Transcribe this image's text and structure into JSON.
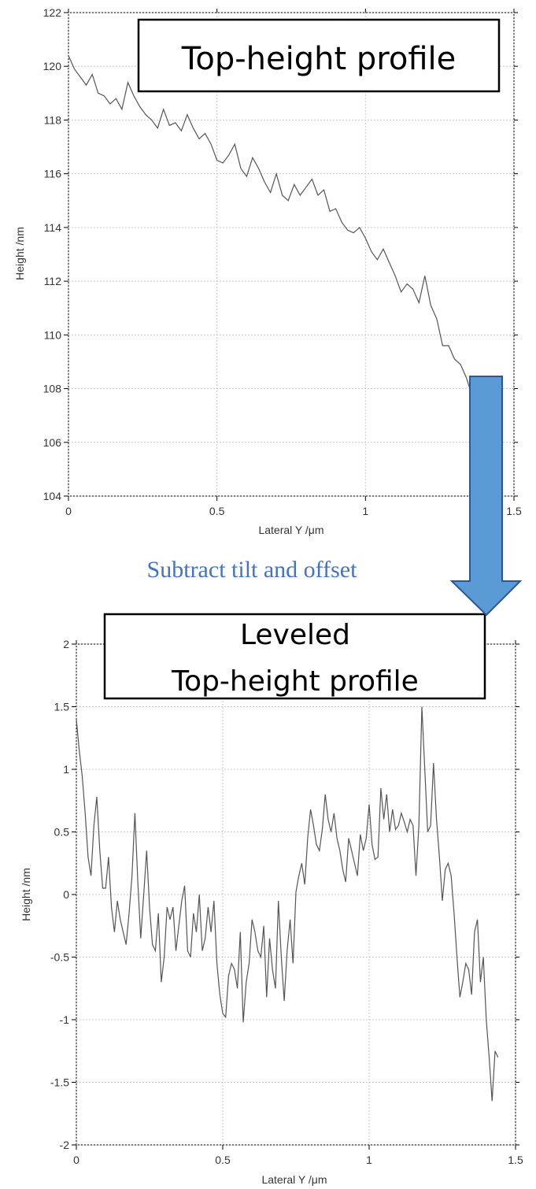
{
  "colors": {
    "arrow_fill": "#5b9bd5",
    "arrow_stroke": "#2f5597",
    "note_text": "#4472c4",
    "line": "#555555",
    "grid": "#c8c8c8"
  },
  "annotation": {
    "text": "Subtract tilt and offset"
  },
  "chart_data": [
    {
      "type": "line",
      "title_box": [
        "Top-height profile"
      ],
      "xlabel": "Lateral Y /μm",
      "ylabel": "Height /nm",
      "xlim": [
        0,
        1.5
      ],
      "ylim": [
        104,
        122
      ],
      "xticks": [
        0,
        0.5,
        1,
        1.5
      ],
      "xtick_labels": [
        "0",
        "0.5",
        "1",
        "1.5"
      ],
      "yticks": [
        104,
        106,
        108,
        110,
        112,
        114,
        116,
        118,
        120,
        122
      ],
      "ytick_labels": [
        "104",
        "106",
        "108",
        "110",
        "112",
        "114",
        "116",
        "118",
        "120",
        "122"
      ],
      "grid": true,
      "series": [
        {
          "x": [
            0.0,
            0.02,
            0.04,
            0.06,
            0.08,
            0.1,
            0.12,
            0.14,
            0.16,
            0.18,
            0.2,
            0.22,
            0.24,
            0.26,
            0.28,
            0.3,
            0.32,
            0.34,
            0.36,
            0.38,
            0.4,
            0.42,
            0.44,
            0.46,
            0.48,
            0.5,
            0.52,
            0.54,
            0.56,
            0.58,
            0.6,
            0.62,
            0.64,
            0.66,
            0.68,
            0.7,
            0.72,
            0.74,
            0.76,
            0.78,
            0.8,
            0.82,
            0.84,
            0.86,
            0.88,
            0.9,
            0.92,
            0.94,
            0.96,
            0.98,
            1.0,
            1.02,
            1.04,
            1.06,
            1.08,
            1.1,
            1.12,
            1.14,
            1.16,
            1.18,
            1.2,
            1.22,
            1.24,
            1.26,
            1.28,
            1.3,
            1.32,
            1.34,
            1.36,
            1.38
          ],
          "y": [
            120.4,
            119.9,
            119.6,
            119.3,
            119.7,
            119.0,
            118.9,
            118.6,
            118.8,
            118.4,
            119.4,
            118.9,
            118.5,
            118.2,
            118.0,
            117.7,
            118.4,
            117.8,
            117.9,
            117.6,
            118.2,
            117.7,
            117.3,
            117.5,
            117.1,
            116.5,
            116.4,
            116.7,
            117.1,
            116.2,
            115.9,
            116.6,
            116.2,
            115.7,
            115.3,
            116.0,
            115.2,
            115.0,
            115.6,
            115.2,
            115.5,
            115.8,
            115.2,
            115.4,
            114.6,
            114.7,
            114.2,
            113.9,
            113.8,
            114.0,
            113.6,
            113.1,
            112.8,
            113.2,
            112.7,
            112.2,
            111.6,
            111.9,
            111.7,
            111.2,
            112.2,
            111.1,
            110.6,
            109.6,
            109.6,
            109.1,
            108.9,
            108.4,
            107.7,
            107.3
          ]
        }
      ]
    },
    {
      "type": "line",
      "title_box": [
        "Leveled",
        "Top-height profile"
      ],
      "xlabel": "Lateral Y /μm",
      "ylabel": "Height /nm",
      "xlim": [
        0,
        1.5
      ],
      "ylim": [
        -2,
        2
      ],
      "xticks": [
        0,
        0.5,
        1,
        1.5
      ],
      "xtick_labels": [
        "0",
        "0.5",
        "1",
        "1.5"
      ],
      "yticks": [
        -2,
        -1.5,
        -1,
        -0.5,
        0,
        0.5,
        1,
        1.5,
        2
      ],
      "ytick_labels": [
        "-2",
        "-1.5",
        "-1",
        "-0.5",
        "0",
        "0.5",
        "1",
        "1.5",
        "2"
      ],
      "grid": true,
      "series": [
        {
          "x": [
            0.0,
            0.01,
            0.02,
            0.03,
            0.04,
            0.05,
            0.06,
            0.07,
            0.08,
            0.09,
            0.1,
            0.11,
            0.12,
            0.13,
            0.14,
            0.15,
            0.16,
            0.17,
            0.18,
            0.19,
            0.2,
            0.21,
            0.22,
            0.23,
            0.24,
            0.25,
            0.26,
            0.27,
            0.28,
            0.29,
            0.3,
            0.31,
            0.32,
            0.33,
            0.34,
            0.35,
            0.36,
            0.37,
            0.38,
            0.39,
            0.4,
            0.41,
            0.42,
            0.43,
            0.44,
            0.45,
            0.46,
            0.47,
            0.48,
            0.49,
            0.5,
            0.51,
            0.52,
            0.53,
            0.54,
            0.55,
            0.56,
            0.57,
            0.58,
            0.59,
            0.6,
            0.61,
            0.62,
            0.63,
            0.64,
            0.65,
            0.66,
            0.67,
            0.68,
            0.69,
            0.7,
            0.71,
            0.72,
            0.73,
            0.74,
            0.75,
            0.76,
            0.77,
            0.78,
            0.79,
            0.8,
            0.81,
            0.82,
            0.83,
            0.84,
            0.85,
            0.86,
            0.87,
            0.88,
            0.89,
            0.9,
            0.91,
            0.92,
            0.93,
            0.94,
            0.95,
            0.96,
            0.97,
            0.98,
            0.99,
            1.0,
            1.01,
            1.02,
            1.03,
            1.04,
            1.05,
            1.06,
            1.07,
            1.08,
            1.09,
            1.1,
            1.11,
            1.12,
            1.13,
            1.14,
            1.15,
            1.16,
            1.17,
            1.18,
            1.19,
            1.2,
            1.21,
            1.22,
            1.23,
            1.24,
            1.25,
            1.26,
            1.27,
            1.28,
            1.29,
            1.3,
            1.31,
            1.32,
            1.33,
            1.34,
            1.35,
            1.36,
            1.37,
            1.38,
            1.39,
            1.4,
            1.41,
            1.42,
            1.43,
            1.44
          ],
          "y": [
            1.4,
            1.15,
            0.95,
            0.65,
            0.3,
            0.15,
            0.55,
            0.78,
            0.35,
            0.05,
            0.05,
            0.3,
            -0.1,
            -0.3,
            -0.05,
            -0.2,
            -0.3,
            -0.4,
            -0.15,
            0.15,
            0.65,
            0.1,
            -0.35,
            0.0,
            0.35,
            -0.1,
            -0.4,
            -0.45,
            -0.15,
            -0.7,
            -0.5,
            -0.1,
            -0.2,
            -0.1,
            -0.45,
            -0.25,
            -0.05,
            0.07,
            -0.45,
            -0.5,
            -0.15,
            -0.3,
            0.0,
            -0.45,
            -0.35,
            -0.1,
            -0.3,
            -0.05,
            -0.55,
            -0.8,
            -0.95,
            -0.98,
            -0.65,
            -0.55,
            -0.6,
            -0.75,
            -0.3,
            -1.02,
            -0.7,
            -0.55,
            -0.2,
            -0.3,
            -0.45,
            -0.5,
            -0.25,
            -0.82,
            -0.35,
            -0.6,
            -0.75,
            -0.05,
            -0.5,
            -0.85,
            -0.45,
            -0.2,
            -0.55,
            0.02,
            0.15,
            0.25,
            0.08,
            0.45,
            0.68,
            0.55,
            0.4,
            0.35,
            0.52,
            0.8,
            0.6,
            0.5,
            0.65,
            0.45,
            0.35,
            0.2,
            0.1,
            0.45,
            0.35,
            0.25,
            0.15,
            0.48,
            0.35,
            0.45,
            0.72,
            0.4,
            0.28,
            0.3,
            0.85,
            0.6,
            0.8,
            0.5,
            0.68,
            0.52,
            0.55,
            0.65,
            0.58,
            0.5,
            0.6,
            0.55,
            0.15,
            0.55,
            1.5,
            1.0,
            0.5,
            0.55,
            1.05,
            0.6,
            0.3,
            -0.05,
            0.2,
            0.25,
            0.15,
            -0.15,
            -0.5,
            -0.82,
            -0.7,
            -0.55,
            -0.6,
            -0.8,
            -0.3,
            -0.2,
            -0.7,
            -0.5,
            -1.0,
            -1.3,
            -1.65,
            -1.25,
            -1.3
          ]
        }
      ]
    }
  ]
}
